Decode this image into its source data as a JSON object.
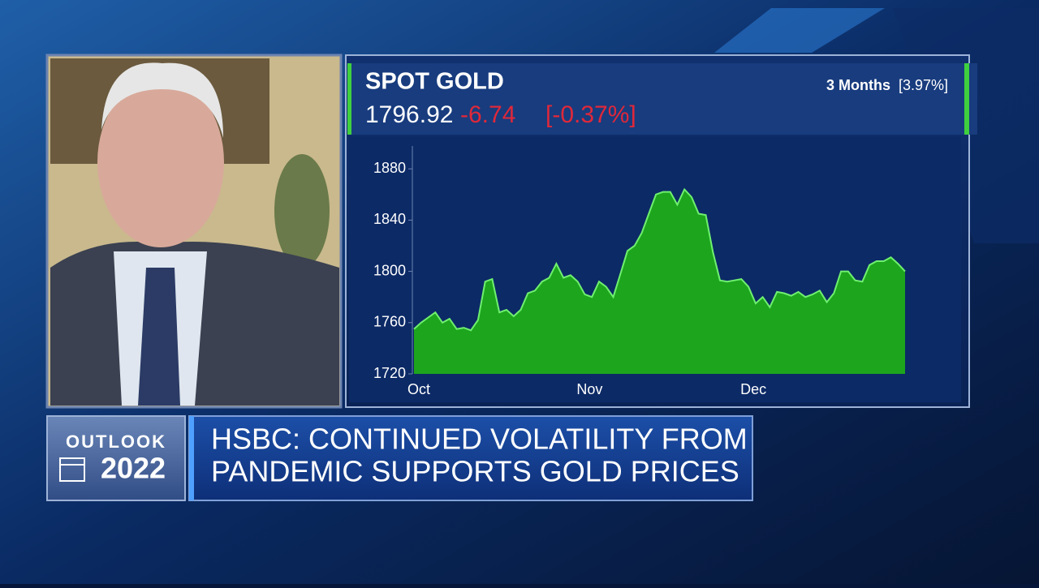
{
  "chart_data": {
    "type": "area",
    "title": "SPOT GOLD",
    "price": "1796.92",
    "change": "-6.74",
    "change_pct": "[-0.37%]",
    "period": "3 Months",
    "period_change": "[3.97%]",
    "categories": [
      "Oct",
      null,
      null,
      null,
      null,
      null,
      null,
      null,
      null,
      null,
      null,
      null,
      null,
      null,
      null,
      null,
      null,
      null,
      null,
      null,
      null,
      null,
      null,
      null,
      "Nov",
      null,
      null,
      null,
      null,
      null,
      null,
      null,
      null,
      null,
      null,
      null,
      null,
      null,
      null,
      null,
      null,
      null,
      null,
      null,
      null,
      null,
      null,
      "Dec",
      null,
      null,
      null,
      null,
      null,
      null,
      null,
      null,
      null,
      null,
      null,
      null,
      null,
      null,
      null,
      null,
      null,
      null,
      null,
      null,
      null,
      null
    ],
    "values": [
      1755,
      1760,
      1764,
      1768,
      1760,
      1763,
      1755,
      1756,
      1754,
      1762,
      1792,
      1794,
      1768,
      1770,
      1765,
      1770,
      1783,
      1785,
      1792,
      1795,
      1806,
      1795,
      1797,
      1792,
      1782,
      1780,
      1792,
      1788,
      1780,
      1798,
      1816,
      1820,
      1830,
      1845,
      1860,
      1862,
      1862,
      1852,
      1864,
      1858,
      1845,
      1844,
      1815,
      1793,
      1792,
      1793,
      1794,
      1788,
      1775,
      1780,
      1772,
      1784,
      1783,
      1781,
      1784,
      1780,
      1782,
      1785,
      1776,
      1783,
      1800,
      1800,
      1793,
      1792,
      1805,
      1808,
      1808,
      1811,
      1806,
      1800
    ],
    "color": "#1ea51e",
    "ylim": [
      1720,
      1895
    ],
    "yticks": [
      1720,
      1760,
      1800,
      1840,
      1880
    ]
  },
  "lower_third": {
    "tag_top": "OUTLOOK",
    "tag_year": "2022",
    "headline": [
      "HSBC: CONTINUED VOLATILITY FROM",
      "PANDEMIC SUPPORTS GOLD PRICES"
    ]
  }
}
